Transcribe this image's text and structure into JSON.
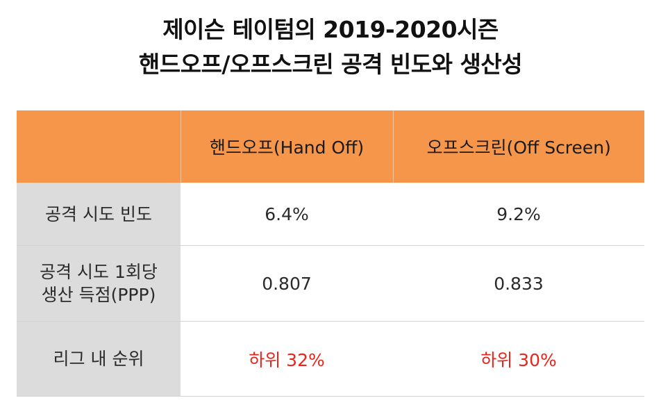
{
  "title": {
    "line1": "제이슨 테이텀의 2019-2020시즌",
    "line2": "핸드오프/오프스크린 공격 빈도와 생산성"
  },
  "table": {
    "headers": [
      "",
      "핸드오프(Hand Off)",
      "오프스크린(Off Screen)"
    ],
    "rows": [
      {
        "label_lines": [
          "공격 시도 빈도"
        ],
        "hand_off": "6.4%",
        "off_screen": "9.2%"
      },
      {
        "label_lines": [
          "공격 시도 1회당",
          "생산 득점(PPP)"
        ],
        "hand_off": "0.807",
        "off_screen": "0.833"
      },
      {
        "label_lines": [
          "리그 내 순위"
        ],
        "hand_off": "하위 32%",
        "off_screen": "하위 30%"
      }
    ]
  },
  "colors": {
    "header_bg": "#f6964a",
    "label_bg": "#dcdcdc",
    "rank_text": "#e8251c"
  }
}
